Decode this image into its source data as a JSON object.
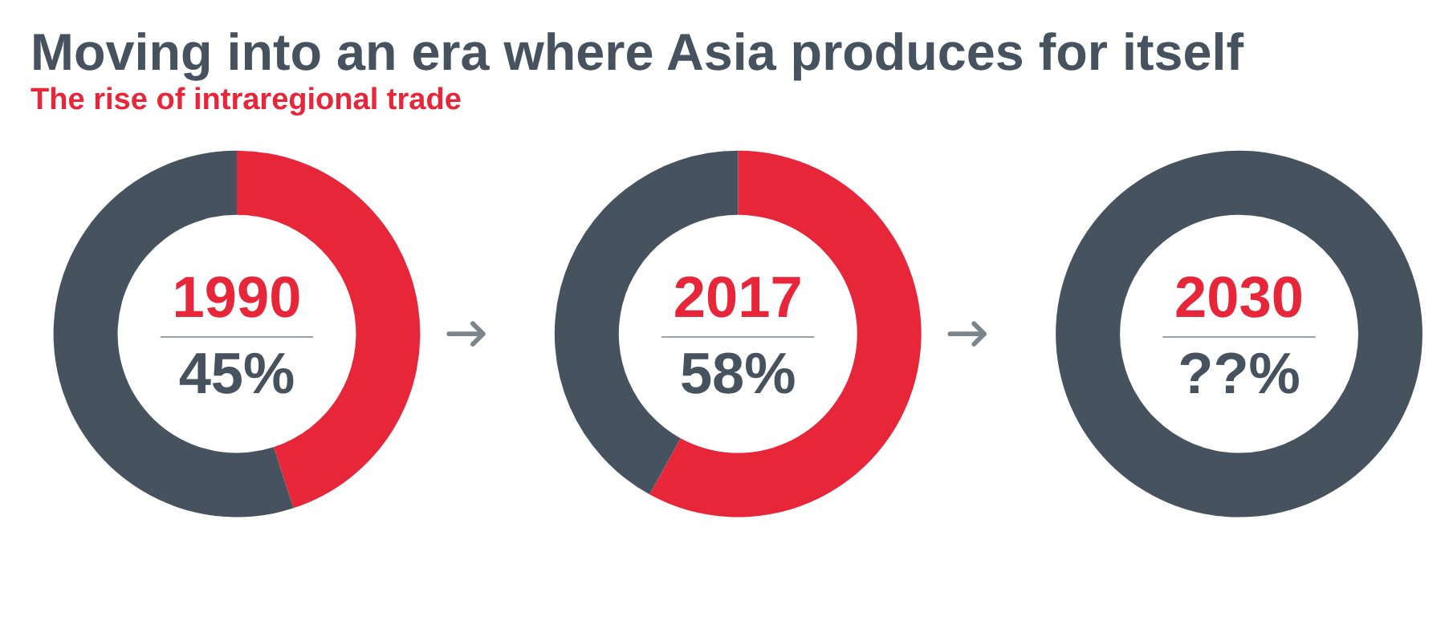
{
  "chart_data": [
    {
      "type": "donut",
      "title": "Moving into an era where Asia produces for itself",
      "subtitle": "The rise of intraregional trade",
      "categories": [
        null,
        null
      ],
      "values": [
        45,
        55
      ],
      "colors": [
        "#e8263a",
        "#46525e"
      ],
      "annotations": [
        "1990",
        "45%"
      ]
    },
    {
      "type": "donut",
      "categories": [
        null,
        null
      ],
      "values": [
        58,
        42
      ],
      "colors": [
        "#e8263a",
        "#46525e"
      ],
      "annotations": [
        "2017",
        "58%"
      ]
    },
    {
      "type": "donut",
      "categories": [
        null
      ],
      "values": [
        100
      ],
      "colors": [
        "#46525e"
      ],
      "annotations": [
        "2030",
        "??%"
      ]
    }
  ]
}
